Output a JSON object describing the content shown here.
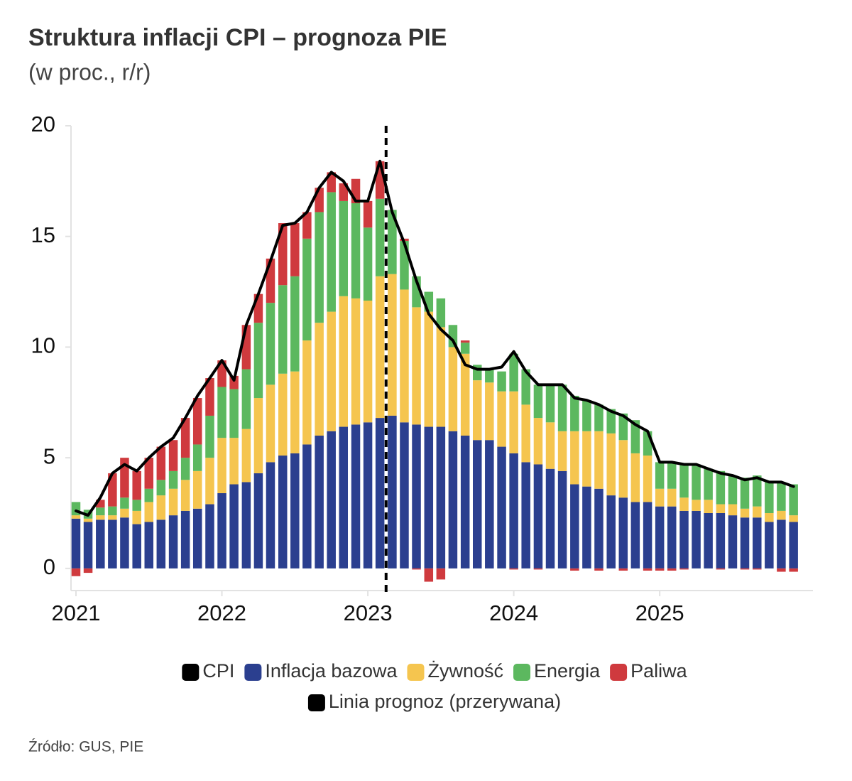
{
  "chart_data": {
    "type": "bar",
    "title": "Struktura inflacji CPI – prognoza PIE",
    "subtitle": "(w proc., r/r)",
    "source": "Źródło: GUS, PIE",
    "stacked": true,
    "x": [
      2021,
      2021.083,
      2021.167,
      2021.25,
      2021.333,
      2021.417,
      2021.5,
      2021.583,
      2021.667,
      2021.75,
      2021.833,
      2021.917,
      2022,
      2022.083,
      2022.167,
      2022.25,
      2022.333,
      2022.417,
      2022.5,
      2022.583,
      2022.667,
      2022.75,
      2022.833,
      2022.917,
      2023,
      2023.083,
      2023.167,
      2023.25,
      2023.333,
      2023.417,
      2023.5,
      2023.583,
      2023.667,
      2023.75,
      2023.833,
      2023.917,
      2024,
      2024.083,
      2024.167,
      2024.25,
      2024.333,
      2024.417,
      2024.5,
      2024.583,
      2024.667,
      2024.75,
      2024.833,
      2024.917,
      2025,
      2025.083,
      2025.167,
      2025.25,
      2025.333,
      2025.417,
      2025.5,
      2025.583,
      2025.667,
      2025.75,
      2025.833,
      2025.917
    ],
    "xlim": [
      2020.966,
      2026.05
    ],
    "xticks": [
      2021,
      2022,
      2023,
      2024,
      2025
    ],
    "ylim": [
      -1,
      20
    ],
    "yticks": [
      0,
      5,
      10,
      15,
      20
    ],
    "series": [
      {
        "name": "CPI",
        "type": "line",
        "color": "#000000",
        "values": [
          2.6,
          2.4,
          3.2,
          4.3,
          4.7,
          4.4,
          5.0,
          5.5,
          5.9,
          6.8,
          7.8,
          8.6,
          9.4,
          8.5,
          11.0,
          12.4,
          13.9,
          15.5,
          15.6,
          16.1,
          17.2,
          17.9,
          17.5,
          16.6,
          16.6,
          18.4,
          16.1,
          14.7,
          13.0,
          11.5,
          10.8,
          10.3,
          9.2,
          9.0,
          9.0,
          9.1,
          9.8,
          8.9,
          8.3,
          8.3,
          8.3,
          7.7,
          7.6,
          7.4,
          7.1,
          6.9,
          6.5,
          6.2,
          4.8,
          4.8,
          4.7,
          4.7,
          4.5,
          4.3,
          4.2,
          4.0,
          4.1,
          3.9,
          3.9,
          3.7
        ]
      },
      {
        "name": "Inflacja bazowa",
        "color": "#2b3f8f",
        "values": [
          2.25,
          2.1,
          2.2,
          2.2,
          2.3,
          2.0,
          2.1,
          2.2,
          2.4,
          2.6,
          2.7,
          2.9,
          3.4,
          3.8,
          3.9,
          4.3,
          4.8,
          5.1,
          5.2,
          5.6,
          6.0,
          6.2,
          6.4,
          6.5,
          6.6,
          6.8,
          6.9,
          6.6,
          6.5,
          6.4,
          6.4,
          6.2,
          6.0,
          5.8,
          5.8,
          5.5,
          5.2,
          4.8,
          4.7,
          4.5,
          4.4,
          3.8,
          3.7,
          3.6,
          3.3,
          3.2,
          3.0,
          3.0,
          2.8,
          2.8,
          2.6,
          2.6,
          2.5,
          2.5,
          2.4,
          2.3,
          2.3,
          2.1,
          2.2,
          2.1
        ]
      },
      {
        "name": "Żywność",
        "color": "#f5c54f",
        "values": [
          0.15,
          0.15,
          0.2,
          0.2,
          0.4,
          0.6,
          0.9,
          1.1,
          1.2,
          1.4,
          1.7,
          2.1,
          2.5,
          2.1,
          2.4,
          3.4,
          3.5,
          3.7,
          3.7,
          4.7,
          5.1,
          5.4,
          5.9,
          5.7,
          5.5,
          6.4,
          6.4,
          6.0,
          5.3,
          5.2,
          4.5,
          3.8,
          3.7,
          2.7,
          2.6,
          2.5,
          2.8,
          2.6,
          2.1,
          2.1,
          1.8,
          2.4,
          2.5,
          2.6,
          2.8,
          2.6,
          2.2,
          2.1,
          0.8,
          0.8,
          0.6,
          0.5,
          0.6,
          0.4,
          0.5,
          0.4,
          0.5,
          0.4,
          0.4,
          0.3
        ]
      },
      {
        "name": "Energia",
        "color": "#5cb85f",
        "values": [
          0.6,
          0.4,
          0.35,
          0.4,
          0.5,
          0.5,
          0.6,
          0.7,
          0.8,
          1.0,
          1.2,
          1.9,
          2.3,
          2.2,
          2.7,
          3.4,
          3.7,
          4.0,
          4.3,
          4.6,
          5.0,
          5.4,
          4.3,
          4.3,
          3.3,
          3.5,
          2.9,
          2.2,
          1.4,
          0.9,
          1.3,
          1.0,
          0.5,
          0.7,
          0.6,
          0.9,
          1.7,
          1.6,
          1.5,
          1.7,
          2.1,
          1.6,
          1.4,
          1.2,
          1.1,
          1.2,
          1.5,
          1.1,
          1.2,
          1.2,
          1.5,
          1.6,
          1.4,
          1.5,
          1.3,
          1.4,
          1.4,
          1.4,
          1.3,
          1.4
        ]
      },
      {
        "name": "Paliwa",
        "color": "#cf3a3e",
        "values": [
          -0.35,
          -0.2,
          0.35,
          1.5,
          1.8,
          1.3,
          1.4,
          1.5,
          1.4,
          1.8,
          2.1,
          1.7,
          1.2,
          0.6,
          2.0,
          1.3,
          2.0,
          2.8,
          2.4,
          1.2,
          1.1,
          0.9,
          0.8,
          1.1,
          1.2,
          1.7,
          0,
          0.1,
          -0.05,
          -0.6,
          -0.5,
          0,
          0.1,
          0,
          0,
          0,
          -0.05,
          0,
          -0.05,
          0,
          0,
          -0.1,
          0,
          -0.1,
          0,
          -0.1,
          0,
          -0.1,
          -0.1,
          -0.1,
          -0.05,
          0,
          0,
          -0.05,
          0,
          -0.05,
          -0.05,
          0,
          -0.15,
          -0.15
        ]
      }
    ],
    "forecast": {
      "x": 2023.125,
      "label": "Linia prognoz (przerywana)",
      "color": "#000000"
    }
  }
}
